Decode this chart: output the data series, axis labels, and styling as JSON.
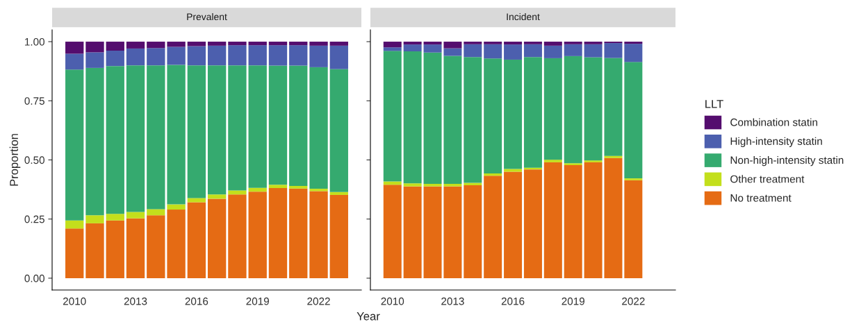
{
  "chart_data": [
    {
      "type": "bar",
      "title": "Prevalent",
      "ylabel": "Proportion",
      "xlabel": "Year",
      "stacked": true,
      "x": [
        2010,
        2011,
        2012,
        2013,
        2014,
        2015,
        2016,
        2017,
        2018,
        2019,
        2020,
        2021,
        2022,
        2023
      ],
      "xlim": [
        2008.9,
        2024.1
      ],
      "xticks": [
        2010,
        2013,
        2016,
        2019,
        2022
      ],
      "ylim": [
        -0.05,
        1.05
      ],
      "yticks": [
        {
          "value": 0,
          "label": "0.00"
        },
        {
          "value": 0.25,
          "label": "0.25"
        },
        {
          "value": 0.5,
          "label": "0.50"
        },
        {
          "value": 0.75,
          "label": "0.75"
        },
        {
          "value": 1,
          "label": "1.00"
        }
      ],
      "grid": false,
      "series": [
        {
          "color": "#e56b14",
          "values": [
            0.21,
            0.232,
            0.244,
            0.253,
            0.266,
            0.29,
            0.321,
            0.336,
            0.354,
            0.366,
            0.381,
            0.379,
            0.368,
            0.352
          ]
        },
        {
          "color": "#c3df1c",
          "values": [
            0.034,
            0.034,
            0.028,
            0.027,
            0.026,
            0.022,
            0.018,
            0.018,
            0.017,
            0.016,
            0.014,
            0.011,
            0.01,
            0.012
          ]
        },
        {
          "color": "#35aa6f",
          "values": [
            0.638,
            0.623,
            0.625,
            0.62,
            0.608,
            0.59,
            0.561,
            0.546,
            0.529,
            0.518,
            0.504,
            0.509,
            0.514,
            0.52
          ]
        },
        {
          "color": "#4c5fae",
          "values": [
            0.067,
            0.066,
            0.065,
            0.071,
            0.073,
            0.076,
            0.081,
            0.083,
            0.085,
            0.085,
            0.086,
            0.086,
            0.091,
            0.099
          ]
        },
        {
          "color": "#540d6e",
          "values": [
            0.051,
            0.045,
            0.038,
            0.029,
            0.027,
            0.022,
            0.019,
            0.017,
            0.015,
            0.015,
            0.015,
            0.015,
            0.017,
            0.017
          ]
        }
      ]
    },
    {
      "type": "bar",
      "title": "Incident",
      "stacked": true,
      "legend": "right",
      "legend_title": "LLT",
      "tick_labels": "x",
      "x": [
        2010,
        2011,
        2012,
        2013,
        2014,
        2015,
        2016,
        2017,
        2018,
        2019,
        2020,
        2021,
        2022
      ],
      "xlim": [
        2008.9,
        2024.1
      ],
      "xticks": [
        2010,
        2013,
        2016,
        2019,
        2022
      ],
      "ylim": [
        -0.05,
        1.05
      ],
      "grid": false,
      "series": [
        {
          "name": "No treatment",
          "color": "#e56b14",
          "values": [
            0.395,
            0.388,
            0.388,
            0.388,
            0.393,
            0.433,
            0.45,
            0.46,
            0.49,
            0.478,
            0.49,
            0.508,
            0.414
          ]
        },
        {
          "name": "Other treatment",
          "color": "#c3df1c",
          "values": [
            0.014,
            0.013,
            0.011,
            0.011,
            0.01,
            0.01,
            0.012,
            0.007,
            0.011,
            0.008,
            0.008,
            0.009,
            0.008
          ]
        },
        {
          "name": "Non-high-intensity statin",
          "color": "#35aa6f",
          "values": [
            0.552,
            0.558,
            0.555,
            0.541,
            0.532,
            0.486,
            0.462,
            0.468,
            0.429,
            0.453,
            0.436,
            0.414,
            0.492
          ]
        },
        {
          "name": "High-intensity statin",
          "color": "#4c5fae",
          "values": [
            0.015,
            0.029,
            0.034,
            0.032,
            0.054,
            0.06,
            0.064,
            0.054,
            0.053,
            0.05,
            0.055,
            0.063,
            0.077
          ]
        },
        {
          "name": "Combination statin",
          "color": "#540d6e",
          "values": [
            0.024,
            0.012,
            0.012,
            0.028,
            0.011,
            0.011,
            0.012,
            0.011,
            0.017,
            0.011,
            0.011,
            0.006,
            0.009
          ]
        }
      ]
    }
  ]
}
